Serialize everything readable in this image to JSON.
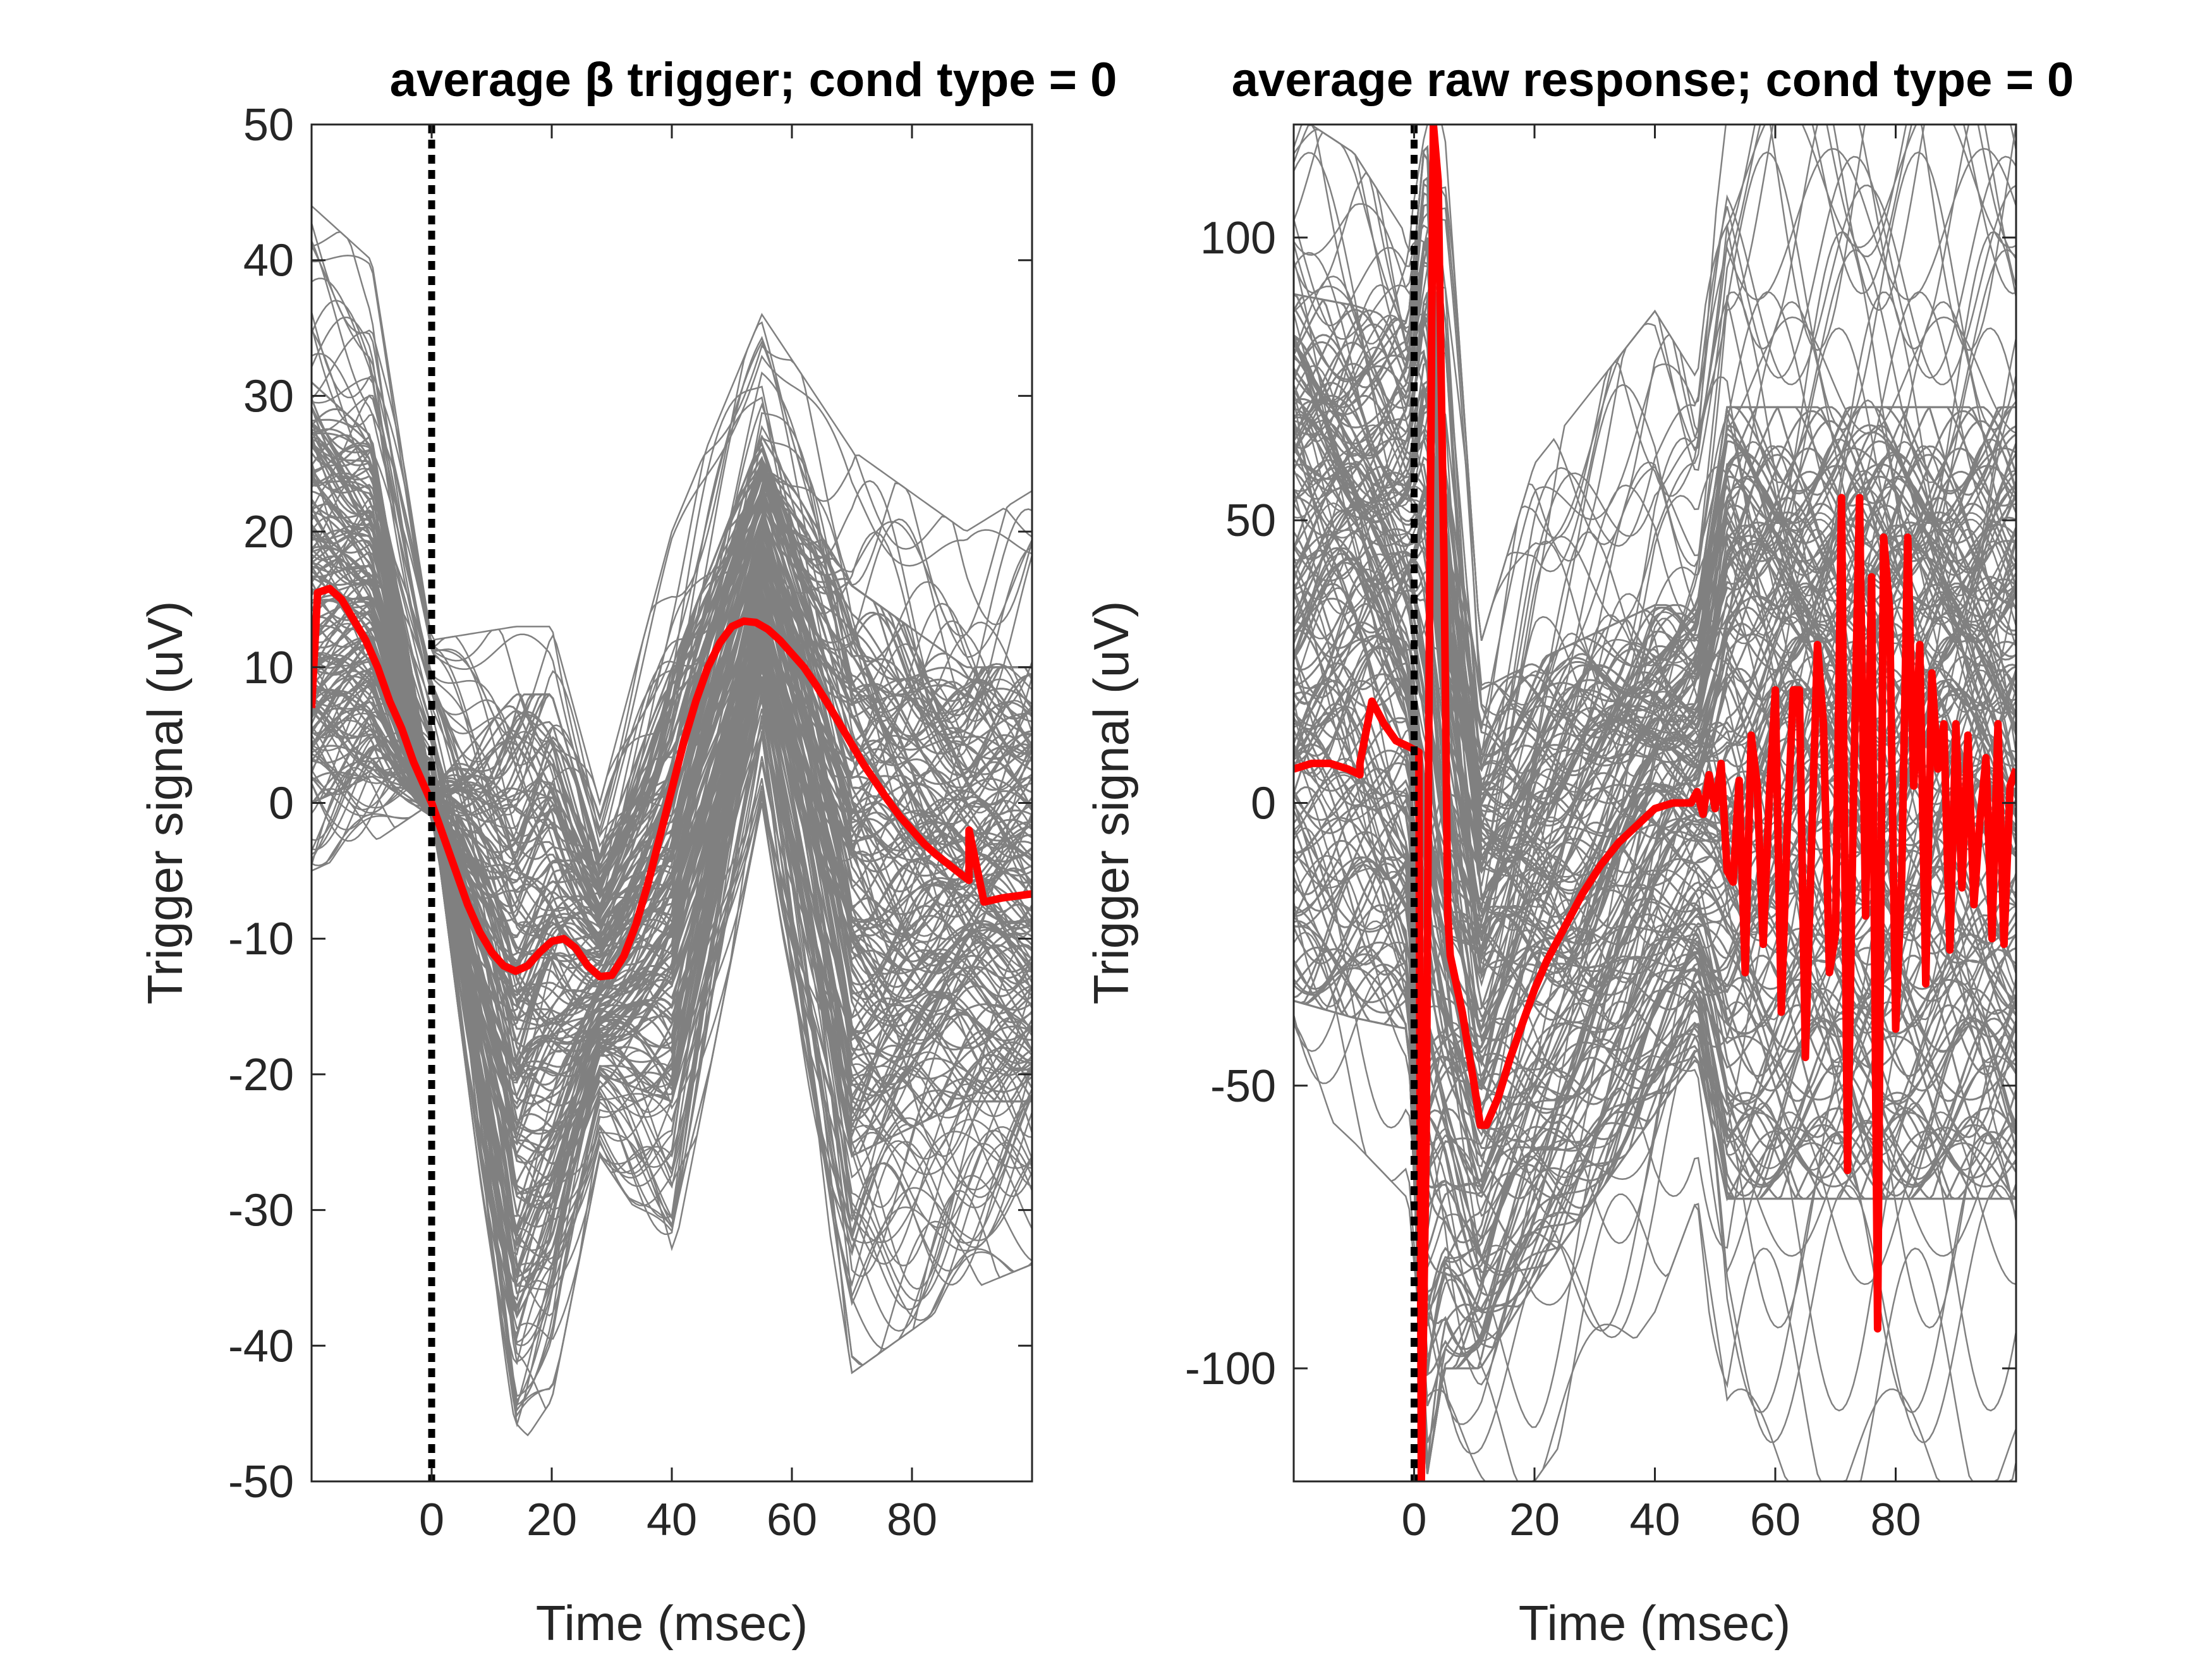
{
  "chart_data": [
    {
      "type": "line",
      "title": "average β trigger; cond type = 0",
      "xlabel": "Time (msec)",
      "ylabel": "Trigger signal (uV)",
      "xlim": [
        -20,
        100
      ],
      "ylim": [
        -50,
        50
      ],
      "xticks": [
        0,
        20,
        40,
        60,
        80
      ],
      "yticks": [
        50,
        40,
        30,
        20,
        10,
        0,
        -10,
        -20,
        -30,
        -40,
        -50
      ],
      "grid": false,
      "trial_color": "#808080",
      "average_color": "#ff0000",
      "event_marker_x": 0,
      "series": [
        {
          "role": "average",
          "x": [
            -20,
            -19,
            -17,
            -15,
            -13,
            -11,
            -9,
            -7,
            -5,
            -3,
            -1,
            0,
            2,
            4,
            6,
            8,
            10,
            12,
            14,
            16,
            18,
            20,
            22,
            24,
            26,
            28,
            30,
            32,
            34,
            36,
            38,
            40,
            42,
            44,
            46,
            48,
            50,
            52,
            54,
            56,
            58,
            60,
            62,
            64,
            66,
            68,
            70,
            72,
            74,
            76,
            78,
            80,
            82,
            84,
            86,
            88,
            89.5,
            89.5,
            92,
            95,
            100
          ],
          "y": [
            7,
            15.5,
            15.8,
            15,
            13.5,
            12,
            10,
            7.5,
            5.5,
            3,
            1,
            0,
            -2.5,
            -5,
            -7.5,
            -9.5,
            -11,
            -12,
            -12.4,
            -12,
            -11,
            -10.2,
            -10,
            -10.7,
            -12,
            -12.8,
            -12.7,
            -11.3,
            -9,
            -6,
            -2.5,
            1,
            4.5,
            7.5,
            10,
            11.8,
            13,
            13.4,
            13.3,
            12.8,
            12,
            11,
            10,
            8.7,
            7.3,
            5.8,
            4.3,
            2.8,
            1.5,
            0.2,
            -1,
            -2,
            -3,
            -3.8,
            -4.5,
            -5.2,
            -5.7,
            -2,
            -7.3,
            -7,
            -6.7
          ]
        }
      ],
      "trial_envelope": {
        "x": [
          -20,
          -10,
          0,
          14,
          20,
          28,
          40,
          55,
          70,
          89,
          100
        ],
        "upper": [
          44,
          40,
          12,
          13,
          13,
          0,
          20,
          36,
          26,
          20,
          23
        ],
        "lower": [
          -5,
          -3,
          0,
          -48,
          -44,
          -26,
          -34,
          0,
          -42,
          -36,
          -34
        ],
        "dense_upper": [
          31,
          27,
          1,
          8,
          8,
          -4,
          10,
          27,
          16,
          10,
          10
        ],
        "dense_lower": [
          0,
          2,
          -1,
          -38,
          -33,
          -20,
          -22,
          8,
          -26,
          -22,
          -22
        ]
      }
    },
    {
      "type": "line",
      "title": "average raw response; cond type = 0",
      "xlabel": "Time (msec)",
      "ylabel": "Trigger signal (uV)",
      "xlim": [
        -20,
        100
      ],
      "ylim": [
        -120,
        120
      ],
      "xticks": [
        0,
        20,
        40,
        60,
        80
      ],
      "yticks": [
        100,
        50,
        0,
        -50,
        -100
      ],
      "grid": false,
      "trial_color": "#808080",
      "average_color": "#ff0000",
      "event_marker_x": 0,
      "series": [
        {
          "role": "average",
          "x": [
            -20,
            -17,
            -14,
            -11,
            -9,
            -9,
            -7,
            -5,
            -3,
            -1,
            0.8,
            1.2,
            2,
            2.6,
            3.2,
            4,
            5,
            5.6,
            6,
            7,
            8,
            10,
            11,
            12,
            14,
            16,
            18,
            20,
            22,
            25,
            28,
            31,
            34,
            37,
            40,
            43,
            46,
            47,
            48,
            49,
            50,
            51,
            52,
            53,
            54,
            55,
            56,
            57,
            58,
            59,
            60,
            61,
            62,
            63,
            64,
            65,
            66,
            67,
            68,
            69,
            70,
            71,
            72,
            73,
            74,
            75,
            76,
            77,
            78,
            79,
            80,
            81,
            82,
            83,
            84,
            85,
            86,
            87,
            88,
            89,
            90,
            91,
            92,
            93,
            94,
            95,
            96,
            97,
            98,
            99,
            100
          ],
          "y": [
            6,
            7,
            7,
            6,
            5,
            7,
            18,
            14,
            11,
            10,
            9,
            -120,
            -60,
            40,
            120,
            110,
            40,
            -20,
            -27,
            -32,
            -37,
            -50,
            -57,
            -57,
            -52,
            -45,
            -39,
            -33,
            -28,
            -22,
            -16,
            -11,
            -7,
            -4,
            -1,
            0,
            0,
            2,
            -2,
            5,
            -1,
            7,
            -12,
            -14,
            4,
            -30,
            12,
            3,
            -25,
            1,
            20,
            -37,
            -4,
            20,
            20,
            -45,
            -8,
            28,
            14,
            -30,
            -23,
            54,
            -65,
            2,
            54,
            -20,
            40,
            -93,
            47,
            34,
            -40,
            -13,
            47,
            3,
            28,
            -32,
            23,
            6,
            14,
            -26,
            14,
            -15,
            12,
            -18,
            -3,
            8,
            -24,
            14,
            -25,
            3,
            6
          ]
        }
      ],
      "trial_envelope": {
        "x": [
          -20,
          -10,
          -1,
          2,
          5,
          11,
          20,
          40,
          47,
          52,
          70,
          85,
          100
        ],
        "upper": [
          122,
          115,
          100,
          120,
          120,
          28,
          60,
          87,
          75,
          122,
          122,
          122,
          122
        ],
        "lower": [
          -50,
          -60,
          -70,
          -120,
          -120,
          -120,
          -120,
          -90,
          -70,
          -120,
          -120,
          -120,
          -120
        ],
        "dense_upper": [
          90,
          88,
          85,
          120,
          60,
          20,
          25,
          35,
          35,
          70,
          70,
          70,
          70
        ],
        "dense_lower": [
          -35,
          -38,
          -40,
          -120,
          -100,
          -100,
          -85,
          -55,
          -45,
          -70,
          -70,
          -70,
          -70
        ]
      }
    }
  ]
}
